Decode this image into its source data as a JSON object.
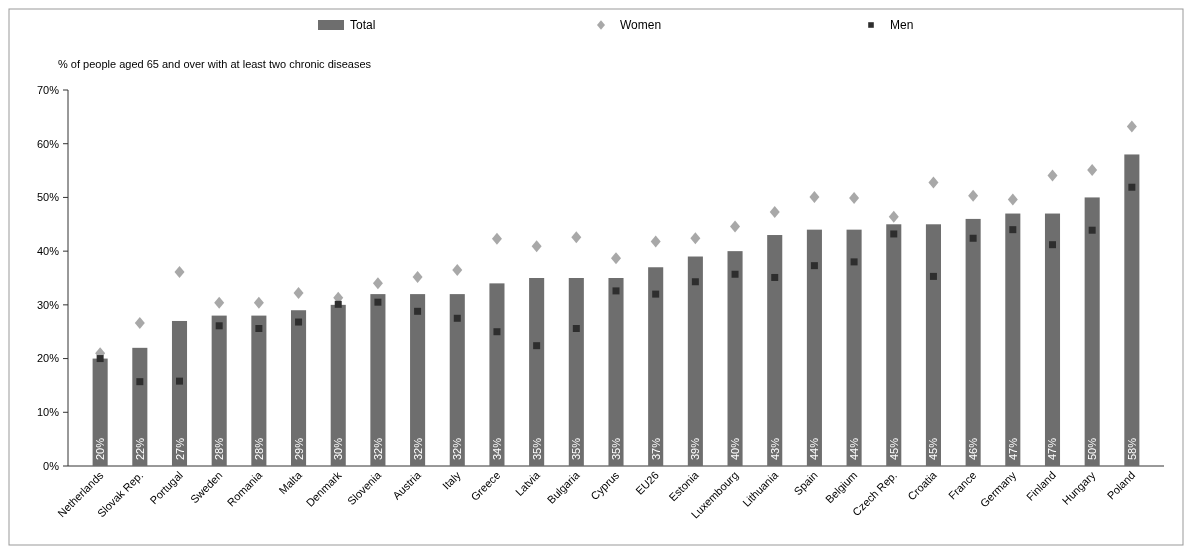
{
  "chart_data": {
    "type": "bar",
    "ylabel": "% of people aged 65 and over with at least two chronic diseases",
    "categories": [
      "Netherlands",
      "Slovak Rep.",
      "Portugal",
      "Sweden",
      "Romania",
      "Malta",
      "Denmark",
      "Slovenia",
      "Austria",
      "Italy",
      "Greece",
      "Latvia",
      "Bulgaria",
      "Cyprus",
      "EU26",
      "Estonia",
      "Luxembourg",
      "Lithuania",
      "Spain",
      "Belgium",
      "Czech Rep.",
      "Croatia",
      "France",
      "Germany",
      "Finland",
      "Hungary",
      "Poland"
    ],
    "series": [
      {
        "name": "Total",
        "color": "#6e6e6e",
        "values": [
          20,
          22,
          27,
          28,
          28,
          29,
          30,
          32,
          32,
          32,
          34,
          35,
          35,
          35,
          37,
          39,
          40,
          43,
          44,
          44,
          45,
          45,
          46,
          47,
          47,
          50,
          58
        ],
        "value_labels": [
          "20%",
          "22%",
          "27%",
          "28%",
          "28%",
          "29%",
          "30%",
          "32%",
          "32%",
          "32%",
          "34%",
          "35%",
          "35%",
          "35%",
          "37%",
          "39%",
          "40%",
          "43%",
          "44%",
          "44%",
          "45%",
          "45%",
          "46%",
          "47%",
          "47%",
          "50%",
          "58%"
        ]
      },
      {
        "name": "Women",
        "type": "scatter",
        "marker": "diamond",
        "color": "#a8a8a8",
        "values": [
          21,
          26.6,
          36.1,
          30.4,
          30.4,
          32.2,
          31.3,
          34,
          35.2,
          36.5,
          42.3,
          40.9,
          42.6,
          38.7,
          41.8,
          42.4,
          44.6,
          47.3,
          50.1,
          49.9,
          46.4,
          52.8,
          50.3,
          49.6,
          54.1,
          55.1,
          63.2
        ]
      },
      {
        "name": "Men",
        "type": "scatter",
        "marker": "square",
        "color": "#2e2e2e",
        "values": [
          20,
          15.7,
          15.8,
          26.1,
          25.6,
          26.8,
          30.1,
          30.5,
          28.8,
          27.5,
          25,
          22.4,
          25.6,
          32.6,
          32,
          34.3,
          35.7,
          35.1,
          37.3,
          38,
          43.2,
          35.3,
          42.4,
          44,
          41.2,
          43.9,
          51.9
        ]
      }
    ],
    "ylim": [
      0,
      70
    ],
    "yticks": [
      {
        "value": 0,
        "label": "0%"
      },
      {
        "value": 10,
        "label": "10%"
      },
      {
        "value": 20,
        "label": "20%"
      },
      {
        "value": 30,
        "label": "30%"
      },
      {
        "value": 40,
        "label": "40%"
      },
      {
        "value": 50,
        "label": "50%"
      },
      {
        "value": 60,
        "label": "60%"
      },
      {
        "value": 70,
        "label": "70%"
      }
    ],
    "legend": "top"
  }
}
